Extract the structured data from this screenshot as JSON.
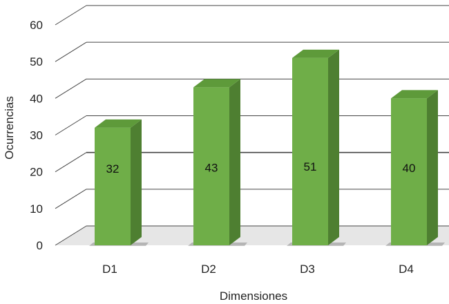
{
  "chart_data": {
    "type": "bar",
    "categories": [
      "D1",
      "D2",
      "D3",
      "D4"
    ],
    "values": [
      32,
      43,
      51,
      40
    ],
    "data_labels": [
      "32",
      "43",
      "51",
      "40"
    ],
    "xlabel": "Dimensiones",
    "ylabel": "Ocurrencias",
    "ylim": [
      0,
      60
    ],
    "yticks": [
      "0",
      "10",
      "20",
      "30",
      "40",
      "50",
      "60"
    ],
    "grid": true,
    "legend": "none",
    "colors": {
      "bar_front": "#6FAE48",
      "bar_side": "#4E7F31",
      "bar_top": "#5E9A3A",
      "gridline": "#444444",
      "floor": "#E6E6E6"
    }
  }
}
